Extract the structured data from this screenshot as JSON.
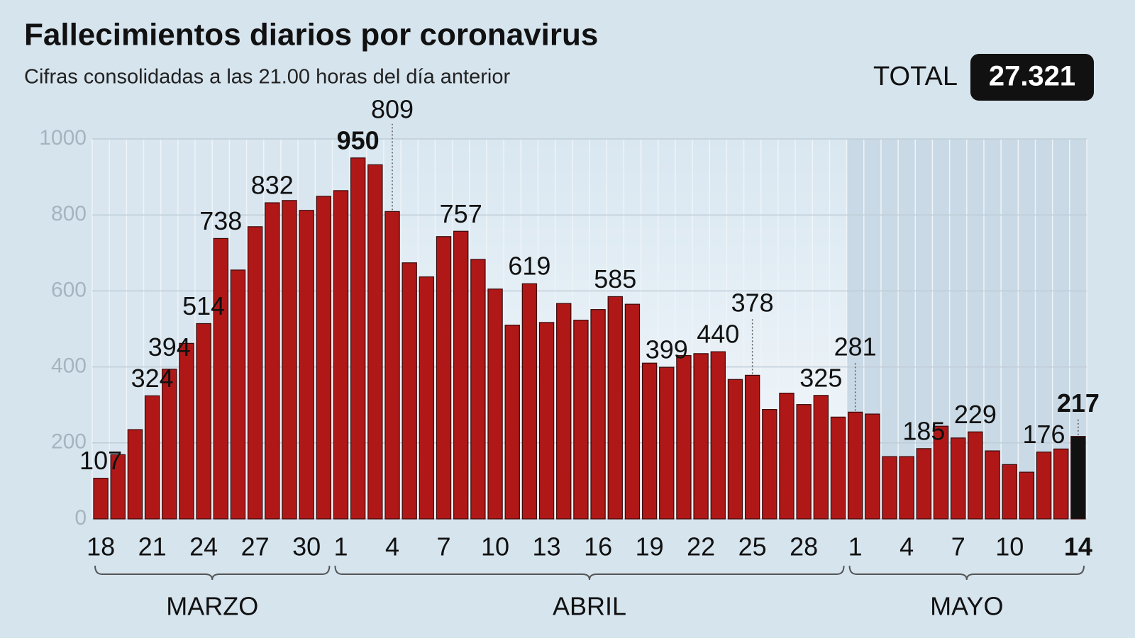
{
  "chart_data": {
    "type": "bar",
    "title": "Fallecimientos diarios por coronavirus",
    "subtitle": "Cifras consolidadas a las 21.00 horas del día anterior",
    "total_label": "TOTAL",
    "total": {
      "value": 27321,
      "label": "27.321"
    },
    "categories": [
      "18",
      null,
      null,
      "21",
      null,
      null,
      "24",
      null,
      null,
      "27",
      null,
      null,
      "30",
      null,
      "1",
      null,
      null,
      "4",
      null,
      null,
      "7",
      null,
      null,
      "10",
      null,
      null,
      "13",
      null,
      null,
      "16",
      null,
      null,
      "19",
      null,
      null,
      "22",
      null,
      null,
      "25",
      null,
      null,
      "28",
      null,
      null,
      "1",
      null,
      null,
      "4",
      null,
      null,
      "7",
      null,
      null,
      "10",
      null,
      null,
      null,
      "14"
    ],
    "months": [
      "MARZO",
      "ABRIL",
      "MAYO"
    ],
    "values": [
      107,
      169,
      235,
      324,
      394,
      462,
      514,
      738,
      655,
      769,
      832,
      838,
      812,
      849,
      864,
      950,
      932,
      809,
      674,
      637,
      743,
      757,
      683,
      605,
      510,
      619,
      517,
      567,
      523,
      551,
      585,
      565,
      410,
      399,
      430,
      435,
      440,
      367,
      378,
      288,
      331,
      301,
      325,
      268,
      281,
      276,
      164,
      164,
      185,
      244,
      213,
      229,
      179,
      143,
      123,
      176,
      184,
      217
    ],
    "value_labels": [
      "107",
      null,
      null,
      "324",
      "394",
      null,
      "514",
      "738",
      null,
      null,
      "832",
      null,
      null,
      null,
      null,
      "950",
      null,
      "809",
      null,
      null,
      null,
      "757",
      null,
      null,
      null,
      "619",
      null,
      null,
      null,
      null,
      "585",
      null,
      null,
      "399",
      null,
      null,
      "440",
      null,
      "378",
      null,
      null,
      null,
      "325",
      null,
      "281",
      null,
      null,
      null,
      "185",
      null,
      null,
      "229",
      null,
      null,
      null,
      "176",
      null,
      "217"
    ],
    "color": "#b01818",
    "highlight_color": "#111111",
    "ylim": [
      0,
      1000
    ],
    "yticks": [
      0,
      200,
      400,
      600,
      800,
      1000
    ],
    "grid": true
  }
}
